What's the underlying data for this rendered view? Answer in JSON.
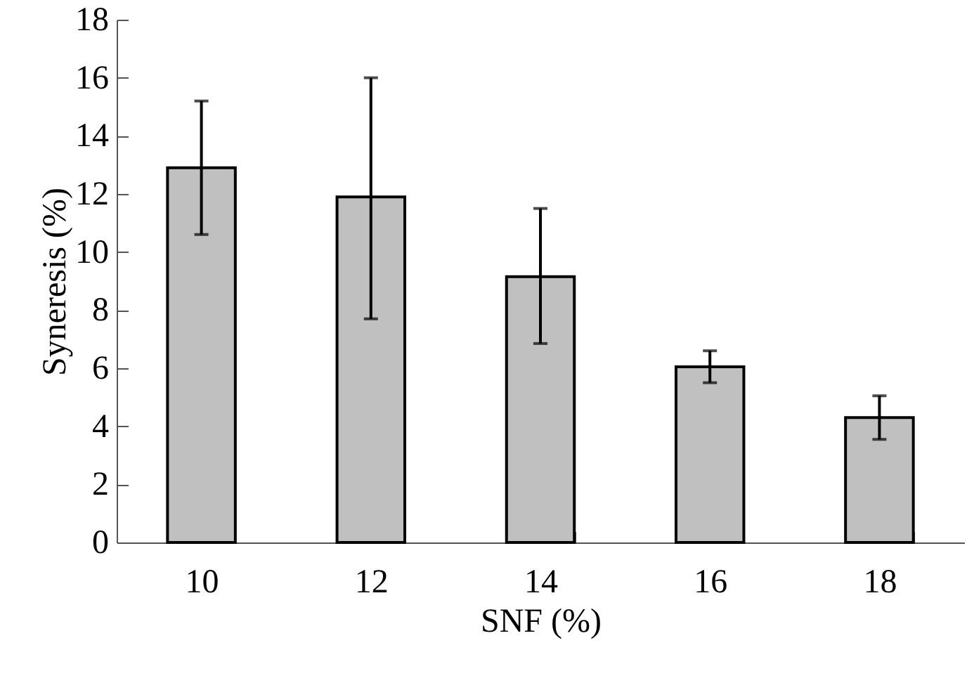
{
  "chart_data": {
    "type": "bar",
    "xlabel": "SNF (%)",
    "ylabel": "Syneresis (%)",
    "categories": [
      "10",
      "12",
      "14",
      "16",
      "18"
    ],
    "values": [
      12.9,
      11.9,
      9.15,
      6.05,
      4.3
    ],
    "errors": [
      [
        10.6,
        15.2
      ],
      [
        7.7,
        16.0
      ],
      [
        6.85,
        11.5
      ],
      [
        5.5,
        6.6
      ],
      [
        3.55,
        5.05
      ]
    ],
    "color": "#c0c0c0",
    "ylim": [
      0,
      18
    ],
    "yticks": [
      0,
      2,
      4,
      6,
      8,
      10,
      12,
      14,
      16,
      18
    ]
  }
}
